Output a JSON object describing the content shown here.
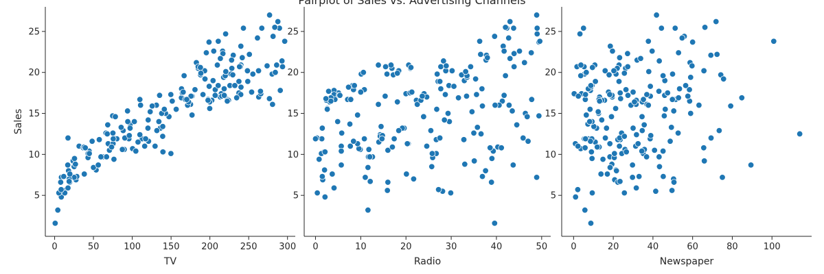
{
  "title": "Pairplot of Sales vs. Advertising Channels",
  "colors": {
    "marker": "#1f77b4",
    "marker_edge": "#ffffff",
    "axis": "#262626"
  },
  "chart_data": [
    {
      "type": "scatter",
      "xlabel": "TV",
      "ylabel": "Sales",
      "xlim": [
        -12,
        310
      ],
      "ylim": [
        0,
        28
      ],
      "xticks": [
        0,
        50,
        100,
        150,
        200,
        250,
        300
      ],
      "yticks": [
        5,
        10,
        15,
        20,
        25
      ],
      "x": [
        230.1,
        44.5,
        17.2,
        151.5,
        180.8,
        8.7,
        57.5,
        120.2,
        8.6,
        199.8,
        66.1,
        214.7,
        23.8,
        97.5,
        204.1,
        195.4,
        67.8,
        281.4,
        69.2,
        147.3,
        218.4,
        237.4,
        13.2,
        228.3,
        62.3,
        262.9,
        142.9,
        240.1,
        248.8,
        70.6,
        292.9,
        112.9,
        97.2,
        265.6,
        95.7,
        290.7,
        266.9,
        74.7,
        43.1,
        228,
        202.5,
        177,
        293.6,
        206.9,
        25.1,
        175.1,
        89.7,
        239.9,
        227.2,
        66.9,
        199.8,
        100.4,
        216.4,
        182.6,
        262.7,
        198.9,
        7.3,
        136.2,
        210.8,
        210.7,
        53.5,
        261.3,
        239.3,
        102.7,
        131.1,
        69,
        31.5,
        139.3,
        237.4,
        216.8,
        199.1,
        109.8,
        26.8,
        129.4,
        213.4,
        16.9,
        27.5,
        120.5,
        5.4,
        116,
        76.4,
        239.8,
        75.3,
        68.4,
        213.5,
        193.2,
        76.3,
        110.7,
        88.3,
        109.8,
        134.3,
        28.6,
        217.7,
        250.9,
        107.4,
        163.3,
        197.6,
        184.9,
        289.7,
        135.2,
        222.4,
        296.4,
        280.2,
        187.9,
        238.2,
        137.9,
        25,
        90.4,
        13.1,
        255.4,
        225.8,
        241.7,
        175.7,
        209.6,
        78.2,
        75.1,
        139.2,
        76.4,
        125.7,
        19.4,
        141.3,
        18.8,
        224,
        123.1,
        229.5,
        87.2,
        7.8,
        80.2,
        220.3,
        59.6,
        0.7,
        265.2,
        8.4,
        219.8,
        36.9,
        48.3,
        25.6,
        273.7,
        43,
        184.9,
        73.4,
        193.7,
        220.5,
        104.6,
        96.2,
        140.3,
        240.1,
        243.2,
        38,
        44.7,
        280.7,
        121,
        197.6,
        171.3,
        187.8,
        4.1,
        93.9,
        149.8,
        11.7,
        131.7,
        172.5,
        85.7,
        188.4,
        163.5,
        117.2,
        234.5,
        17.9,
        206.8,
        215.4,
        284.3,
        50,
        164.5,
        19.6,
        168.4,
        222.4,
        276.9,
        248.4,
        170.2,
        276.7,
        165.6,
        156.6,
        218.5,
        56.2,
        287.6,
        253.8,
        205,
        139.5,
        191.1,
        286,
        18.7,
        39.5,
        75.5,
        17.2,
        166.8,
        149.7,
        38.2,
        94.2,
        177,
        283.6,
        232.1
      ],
      "y": [
        22.1,
        10.4,
        12,
        16.5,
        17.9,
        7.2,
        11.8,
        13.2,
        4.8,
        15.6,
        12.6,
        17.4,
        9.2,
        13.7,
        19,
        22.4,
        12.5,
        24.4,
        11.3,
        14.6,
        18,
        17.5,
        5.6,
        20.5,
        9.7,
        17,
        15,
        20.9,
        18.9,
        10.5,
        21.4,
        11.9,
        13.2,
        17.4,
        11.9,
        17.8,
        25.4,
        14.7,
        10.1,
        21.5,
        16.6,
        17.1,
        20.7,
        17.9,
        8.5,
        16.1,
        10.6,
        23.2,
        19.8,
        9.7,
        16.4,
        10.7,
        22.6,
        21.2,
        20.2,
        23.7,
        5.5,
        13.2,
        23.8,
        18.4,
        8.1,
        24.2,
        20.7,
        14,
        16,
        11.3,
        11,
        13.4,
        18.9,
        22.3,
        18.3,
        12.4,
        8.8,
        11,
        17,
        8.7,
        6.9,
        14.2,
        5.3,
        11,
        11.8,
        17.3,
        11.3,
        13.6,
        21.7,
        20.2,
        12,
        16,
        12.9,
        16.7,
        14,
        7.3,
        19.4,
        22.2,
        11.5,
        16.9,
        16.7,
        20.5,
        25.4,
        17.2,
        16.7,
        23.8,
        19.8,
        19.7,
        20.7,
        15,
        7.2,
        12,
        5.3,
        19.8,
        18.4,
        21.8,
        17.1,
        20.9,
        14.6,
        12.6,
        12.2,
        9.4,
        15.9,
        6.6,
        15.5,
        7,
        16.6,
        15.2,
        19.7,
        10.6,
        6.6,
        11.9,
        24.7,
        9.7,
        1.6,
        17.7,
        5.7,
        19.6,
        10.8,
        11.6,
        9.5,
        20.8,
        9.6,
        20.7,
        10.9,
        19.2,
        20.1,
        10.4,
        12.3,
        10.3,
        18.2,
        25.4,
        10.9,
        10.1,
        16.1,
        11.6,
        16.6,
        16,
        20.6,
        3.2,
        15.3,
        10.1,
        7.3,
        12.9,
        16.4,
        13.3,
        19.9,
        18,
        11.9,
        16.9,
        8,
        17.2,
        17.1,
        20,
        8.4,
        17.5,
        7.6,
        16.7,
        16.5,
        27,
        20.2,
        16.7,
        16.8,
        17.6,
        15.5,
        17.2,
        8.7,
        26.2,
        17.6,
        22.6,
        10.3,
        17.3,
        20.9,
        6.7,
        10.8,
        11.9,
        5.9,
        19.6,
        17.3,
        7.6,
        14,
        14.8,
        25.5,
        18.4
      ]
    },
    {
      "type": "scatter",
      "xlabel": "Radio",
      "ylabel": "",
      "xlim": [
        -2.5,
        52
      ],
      "ylim": [
        0,
        28
      ],
      "xticks": [
        0,
        10,
        20,
        30,
        40,
        50
      ],
      "yticks": [
        5,
        10,
        15,
        20,
        25
      ],
      "x": [
        37.8,
        39.3,
        45.9,
        41.3,
        10.8,
        48.9,
        32.8,
        19.6,
        2.1,
        2.6,
        5.8,
        24,
        35.1,
        7.6,
        32.9,
        47.7,
        36.6,
        39.6,
        20.5,
        23.9,
        27.7,
        5.1,
        15.9,
        16.9,
        12.6,
        3.5,
        29.3,
        16.7,
        27.1,
        16,
        28.3,
        17.4,
        1.5,
        20,
        1.4,
        4.1,
        43.8,
        49.4,
        26.7,
        37.7,
        22.3,
        33.4,
        27.7,
        8.4,
        25.7,
        22.5,
        9.9,
        41.5,
        15.8,
        11.7,
        3.1,
        9.6,
        41.7,
        46.2,
        28.8,
        49.4,
        28.1,
        19.2,
        49.6,
        29.5,
        2,
        42.7,
        15.5,
        29.6,
        42.8,
        9.3,
        24.6,
        14.5,
        27.5,
        43.9,
        30.6,
        14.3,
        33,
        5.7,
        24.6,
        43.7,
        1.6,
        28.5,
        29.9,
        7.7,
        26.7,
        4.1,
        20.3,
        44.5,
        43,
        18.4,
        27.5,
        40.6,
        25.5,
        47.8,
        4.9,
        1.5,
        33.5,
        36.5,
        14,
        31.6,
        3.5,
        21,
        42.3,
        41.7,
        4.3,
        36.3,
        10.1,
        17.2,
        34.3,
        46.4,
        11,
        0.3,
        0.4,
        26.9,
        8.2,
        38,
        15.4,
        20.6,
        46.8,
        35,
        14.3,
        0.8,
        36.9,
        16,
        26.8,
        21.7,
        2.4,
        34.6,
        32.3,
        11.8,
        38.9,
        0,
        49,
        12,
        39.6,
        2.9,
        27.2,
        33.5,
        38.6,
        47,
        39,
        28.9,
        25.9,
        43.9,
        17,
        35.4,
        33.2,
        5.7,
        14.8,
        1.9,
        7.3,
        49,
        40.3,
        25.8,
        13.9,
        8.4,
        23.3,
        39.7,
        21.1,
        11.6,
        43.5,
        1.3,
        36.9,
        18.4,
        18.1,
        35.8,
        18.1,
        36.8,
        14.7,
        3.4,
        37.6,
        5.2,
        23.6,
        10.6,
        11.6,
        20.9,
        20.1,
        7.1,
        3.4,
        48.9,
        30.2,
        7.8,
        2.3,
        10,
        2.6,
        5.4,
        5.7,
        43,
        21.3,
        45.1,
        2.1,
        28.7,
        13.9,
        12.1,
        41.1,
        10.8,
        4.1,
        42,
        35.6,
        3.7,
        4.9,
        9.3,
        42,
        8.6
      ],
      "y": [
        22.1,
        10.4,
        12,
        16.5,
        17.9,
        7.2,
        11.8,
        13.2,
        4.8,
        15.6,
        12.6,
        17.4,
        9.2,
        13.7,
        19,
        22.4,
        12.5,
        24.4,
        11.3,
        14.6,
        18,
        17.5,
        5.6,
        20.5,
        9.7,
        17,
        15,
        20.9,
        18.9,
        10.5,
        21.4,
        11.9,
        13.2,
        17.4,
        11.9,
        17.8,
        25.4,
        14.7,
        10.1,
        21.5,
        16.6,
        17.1,
        20.7,
        17.9,
        8.5,
        16.1,
        10.6,
        23.2,
        19.8,
        9.7,
        16.4,
        10.7,
        22.6,
        21.2,
        20.2,
        23.7,
        5.5,
        13.2,
        23.8,
        18.4,
        8.1,
        24.2,
        20.7,
        14,
        16,
        11.3,
        11,
        13.4,
        18.9,
        22.3,
        18.3,
        12.4,
        8.8,
        11,
        17,
        8.7,
        6.9,
        14.2,
        5.3,
        11,
        11.8,
        17.3,
        11.3,
        13.6,
        21.7,
        20.2,
        12,
        16,
        12.9,
        16.7,
        14,
        7.3,
        19.4,
        22.2,
        11.5,
        16.9,
        16.7,
        20.5,
        25.4,
        17.2,
        16.7,
        23.8,
        19.8,
        19.7,
        20.7,
        15,
        7.2,
        12,
        5.3,
        19.8,
        18.4,
        21.8,
        17.1,
        20.9,
        14.6,
        12.6,
        12.2,
        9.4,
        15.9,
        6.6,
        15.5,
        7,
        16.6,
        15.2,
        19.7,
        10.6,
        6.6,
        11.9,
        24.7,
        9.7,
        1.6,
        17.7,
        5.7,
        19.6,
        10.8,
        11.6,
        9.5,
        20.8,
        9.6,
        20.7,
        10.9,
        19.2,
        20.1,
        10.4,
        12.3,
        10.3,
        18.2,
        25.4,
        10.9,
        10.1,
        16.1,
        11.6,
        16.6,
        16,
        20.6,
        3.2,
        15.3,
        10.1,
        7.3,
        12.9,
        16.4,
        13.3,
        19.9,
        18,
        11.9,
        16.9,
        8,
        17.2,
        17.1,
        20,
        8.4,
        17.5,
        7.6,
        16.7,
        16.5,
        27,
        20.2,
        16.7,
        16.8,
        17.6,
        15.5,
        17.2,
        8.7,
        26.2,
        17.6,
        22.6,
        10.3,
        17.3,
        20.9,
        6.7,
        10.8,
        11.9,
        5.9,
        19.6,
        17.3,
        7.6,
        14,
        14.8,
        25.5,
        18.4
      ]
    },
    {
      "type": "scatter",
      "xlabel": "Newspaper",
      "ylabel": "",
      "xlim": [
        -6,
        120
      ],
      "ylim": [
        0,
        28
      ],
      "xticks": [
        0,
        20,
        40,
        60,
        80,
        100
      ],
      "yticks": [
        5,
        10,
        15,
        20,
        25
      ],
      "x": [
        69.2,
        45.1,
        69.3,
        58.5,
        58.4,
        75,
        23.5,
        11.6,
        1,
        21.2,
        24.2,
        4,
        65.9,
        7.2,
        46,
        52.9,
        114,
        55.8,
        18.3,
        19.1,
        53.4,
        23.5,
        49.6,
        26.2,
        18.3,
        19.5,
        12.6,
        22.9,
        22.9,
        40.8,
        43.2,
        38.6,
        30,
        0.3,
        7.4,
        8.5,
        5,
        45.7,
        35.1,
        32,
        31.6,
        38.7,
        1.8,
        26.4,
        43.3,
        31.5,
        35.7,
        18.5,
        49.9,
        36.8,
        34.6,
        3.6,
        39.6,
        58.7,
        15.9,
        60,
        41.4,
        16.6,
        37.7,
        9.3,
        21.4,
        54.7,
        27.3,
        8.4,
        28.9,
        0.9,
        2.2,
        10.2,
        11,
        27.2,
        38.7,
        31.7,
        19.3,
        31.3,
        13.1,
        89.4,
        20.7,
        14.2,
        9.4,
        23.1,
        22.3,
        36.9,
        32.5,
        35.6,
        33.8,
        65.7,
        16,
        63.2,
        73.4,
        51.4,
        9.3,
        33,
        59,
        72.3,
        10.9,
        52.9,
        5.9,
        22,
        51.2,
        45.9,
        49.8,
        100.9,
        21.4,
        17.9,
        5.3,
        59,
        29.7,
        23.2,
        25.6,
        5.5,
        56.5,
        23.2,
        2.4,
        10.7,
        34.5,
        52.7,
        25.6,
        14.8,
        79.2,
        22.3,
        46.2,
        50.4,
        15.6,
        12.4,
        74.2,
        25.9,
        50.6,
        9.2,
        3.2,
        43.1,
        8.7,
        43,
        2.1,
        45.1,
        65.6,
        8.5,
        9.3,
        59.7,
        20.5,
        1.7,
        12.9,
        75.6,
        37.9,
        34.4,
        38.9,
        9,
        8.7,
        44.3,
        11.9,
        20.6,
        37,
        48.7,
        14.2,
        37.7,
        9.5,
        5.7,
        50.5,
        24.3,
        45.2,
        34.6,
        30.7,
        49.3,
        25.6,
        7.4,
        5.4,
        84.8,
        21.6,
        19.4,
        57.6,
        6.4,
        18.4,
        47.4,
        17,
        12.8,
        13.1,
        41.8,
        20.3,
        35.2,
        23.7,
        17.6,
        8.3,
        27.4,
        29.7,
        71.8,
        30,
        19.6,
        26.6,
        18.2,
        3.7,
        23.4,
        5.8,
        6,
        31.6,
        3.6,
        6,
        13.8,
        8.1,
        6.4,
        66.2,
        8.7
      ],
      "y": [
        22.1,
        10.4,
        12,
        16.5,
        17.9,
        7.2,
        11.8,
        13.2,
        4.8,
        15.6,
        12.6,
        17.4,
        9.2,
        13.7,
        19,
        22.4,
        12.5,
        24.4,
        11.3,
        14.6,
        18,
        17.5,
        5.6,
        20.5,
        9.7,
        17,
        15,
        20.9,
        18.9,
        10.5,
        21.4,
        11.9,
        13.2,
        17.4,
        11.9,
        17.8,
        25.4,
        14.7,
        10.1,
        21.5,
        16.6,
        17.1,
        20.7,
        17.9,
        8.5,
        16.1,
        10.6,
        23.2,
        19.8,
        9.7,
        16.4,
        10.7,
        22.6,
        21.2,
        20.2,
        23.7,
        5.5,
        13.2,
        23.8,
        18.4,
        8.1,
        24.2,
        20.7,
        14,
        16,
        11.3,
        11,
        13.4,
        18.9,
        22.3,
        18.3,
        12.4,
        8.8,
        11,
        17,
        8.7,
        6.9,
        14.2,
        5.3,
        11,
        11.8,
        17.3,
        11.3,
        13.6,
        21.7,
        20.2,
        12,
        16,
        12.9,
        16.7,
        14,
        7.3,
        19.4,
        22.2,
        11.5,
        16.9,
        16.7,
        20.5,
        25.4,
        17.2,
        16.7,
        23.8,
        19.8,
        19.7,
        20.7,
        15,
        7.2,
        12,
        5.3,
        19.8,
        18.4,
        21.8,
        17.1,
        20.9,
        14.6,
        12.6,
        12.2,
        9.4,
        15.9,
        6.6,
        15.5,
        7,
        16.6,
        15.2,
        19.7,
        10.6,
        6.6,
        11.9,
        24.7,
        9.7,
        1.6,
        17.7,
        5.7,
        19.6,
        10.8,
        11.6,
        9.5,
        20.8,
        9.6,
        20.7,
        10.9,
        19.2,
        20.1,
        10.4,
        12.3,
        10.3,
        18.2,
        25.4,
        10.9,
        10.1,
        16.1,
        11.6,
        16.6,
        16,
        20.6,
        3.2,
        15.3,
        10.1,
        7.3,
        12.9,
        16.4,
        13.3,
        19.9,
        18,
        11.9,
        16.9,
        8,
        17.2,
        17.1,
        20,
        8.4,
        17.5,
        7.6,
        16.7,
        16.5,
        27,
        20.2,
        16.7,
        16.8,
        17.6,
        15.5,
        17.2,
        8.7,
        26.2,
        17.6,
        22.6,
        10.3,
        17.3,
        20.9,
        6.7,
        10.8,
        11.9,
        5.9,
        19.6,
        17.3,
        7.6,
        14,
        14.8,
        25.5,
        18.4
      ]
    }
  ]
}
